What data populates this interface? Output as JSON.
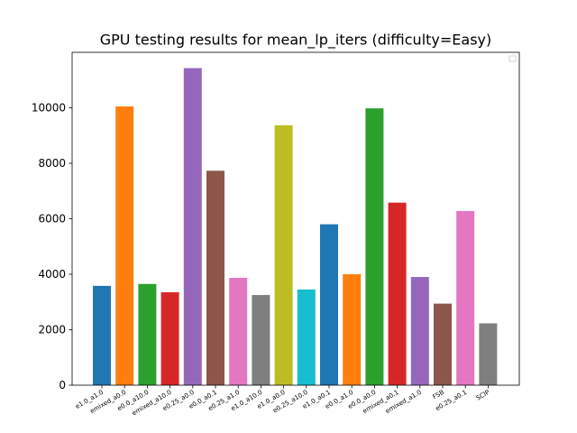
{
  "chart_data": {
    "type": "bar",
    "title": "GPU testing results for mean_lp_iters (difficulty=Easy)",
    "xlabel": "",
    "ylabel": "",
    "ylim": [
      0,
      12000
    ],
    "yticks": [
      0,
      2000,
      4000,
      6000,
      8000,
      10000
    ],
    "grid": false,
    "legend": "top-right (empty)",
    "categories": [
      "e1.0_a1.0",
      "emixed_a0.0",
      "e0.0_a10.0",
      "emixed_a10.0",
      "e0.25_a0.0",
      "e0.0_a0.1",
      "e0.25_a1.0",
      "e1.0_a10.0",
      "e1.0_a0.0",
      "e0.25_a10.0",
      "e1.0_a0.1",
      "e0.0_a1.0",
      "e0.0_a0.0",
      "emixed_a0.1",
      "emixed_a1.0",
      "FSB",
      "e0.25_a0.1",
      "SCIP"
    ],
    "values": [
      3580,
      10050,
      3650,
      3350,
      11430,
      7730,
      3870,
      3250,
      9370,
      3450,
      5800,
      4000,
      9980,
      6580,
      3900,
      2940,
      6280,
      2230
    ],
    "colors": [
      "#1f77b4",
      "#ff7f0e",
      "#2ca02c",
      "#d62728",
      "#9467bd",
      "#8c564b",
      "#e377c2",
      "#7f7f7f",
      "#bcbd22",
      "#17becf",
      "#1f77b4",
      "#ff7f0e",
      "#2ca02c",
      "#d62728",
      "#9467bd",
      "#8c564b",
      "#e377c2",
      "#7f7f7f"
    ]
  }
}
